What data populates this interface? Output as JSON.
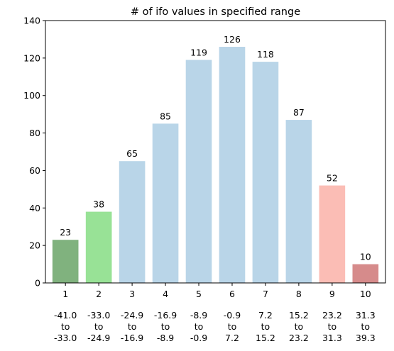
{
  "chart_data": {
    "type": "bar",
    "title": "# of ifo values in specified range",
    "xlabel": "",
    "ylabel": "",
    "ylim": [
      0,
      140
    ],
    "yticks": [
      0,
      20,
      40,
      60,
      80,
      100,
      120,
      140
    ],
    "categories": [
      "1",
      "2",
      "3",
      "4",
      "5",
      "6",
      "7",
      "8",
      "9",
      "10"
    ],
    "values": [
      23,
      38,
      65,
      85,
      119,
      126,
      118,
      87,
      52,
      10
    ],
    "data_labels": [
      "23",
      "38",
      "65",
      "85",
      "119",
      "126",
      "118",
      "87",
      "52",
      "10"
    ],
    "ranges": [
      [
        "-41.0",
        "to",
        "-33.0"
      ],
      [
        "-33.0",
        "to",
        "-24.9"
      ],
      [
        "-24.9",
        "to",
        "-16.9"
      ],
      [
        "-16.9",
        "to",
        "-8.9"
      ],
      [
        "-8.9",
        "to",
        "-0.9"
      ],
      [
        "-0.9",
        "to",
        "7.2"
      ],
      [
        "7.2",
        "to",
        "15.2"
      ],
      [
        "15.2",
        "to",
        "23.2"
      ],
      [
        "23.2",
        "to",
        "31.3"
      ],
      [
        "31.3",
        "to",
        "39.3"
      ]
    ],
    "bar_colors": [
      "#80b27e",
      "#98e296",
      "#b9d5e8",
      "#b9d5e8",
      "#b9d5e8",
      "#b9d5e8",
      "#b9d5e8",
      "#b9d5e8",
      "#fbbdb5",
      "#d68b8b"
    ],
    "grid": false,
    "legend": "none"
  }
}
